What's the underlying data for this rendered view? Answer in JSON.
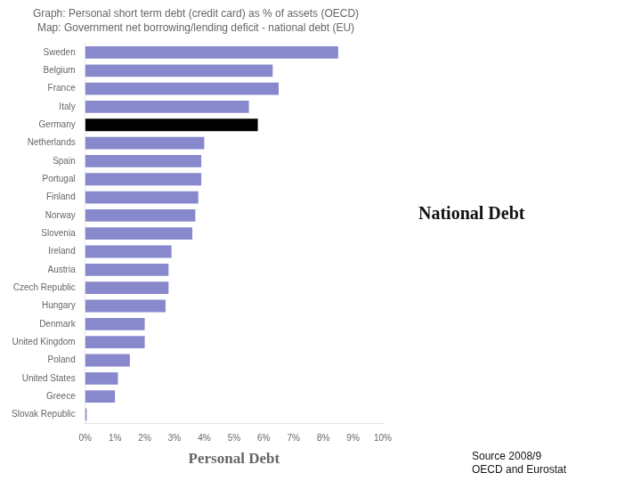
{
  "chart_data": {
    "type": "bar",
    "orientation": "horizontal",
    "title": "Graph: Personal short term debt (credit card) as % of assets (OECD)",
    "subtitle": "Map: Government net borrowing/lending deficit - national debt (EU)",
    "xlabel": "Personal Debt",
    "categories": [
      "Sweden",
      "Belgium",
      "France",
      "Italy",
      "Germany",
      "Netherlands",
      "Spain",
      "Portugal",
      "Finland",
      "Norway",
      "Slovenia",
      "Ireland",
      "Austria",
      "Czech Republic",
      "Hungary",
      "Denmark",
      "United Kingdom",
      "Poland",
      "United States",
      "Greece",
      "Slovak Republic"
    ],
    "values": [
      8.5,
      6.3,
      6.5,
      5.5,
      5.8,
      4.0,
      3.9,
      3.9,
      3.8,
      3.7,
      3.6,
      2.9,
      2.8,
      2.8,
      2.7,
      2.0,
      2.0,
      1.5,
      1.1,
      1.0,
      0.05
    ],
    "colors": [
      "#8888cc",
      "#8888cc",
      "#8888cc",
      "#8888cc",
      "#000000",
      "#8888cc",
      "#8888cc",
      "#8888cc",
      "#8888cc",
      "#8888cc",
      "#8888cc",
      "#8888cc",
      "#8888cc",
      "#8888cc",
      "#8888cc",
      "#8888cc",
      "#8888cc",
      "#8888cc",
      "#8888cc",
      "#8888cc",
      "#8888cc"
    ],
    "xlim": [
      0,
      10
    ],
    "xticks": [
      {
        "value": 0,
        "label": "0%"
      },
      {
        "value": 1,
        "label": "1%"
      },
      {
        "value": 2,
        "label": "2%"
      },
      {
        "value": 3,
        "label": "3%"
      },
      {
        "value": 4,
        "label": "4%"
      },
      {
        "value": 5,
        "label": "5%"
      },
      {
        "value": 6,
        "label": "6%"
      },
      {
        "value": 7,
        "label": "7%"
      },
      {
        "value": 8,
        "label": "8%"
      },
      {
        "value": 9,
        "label": "9%"
      },
      {
        "value": 10,
        "label": "10%"
      }
    ],
    "grid": false,
    "annotations": [
      "National Debt",
      "Source 2008/9\nOECD and Eurostat"
    ]
  }
}
